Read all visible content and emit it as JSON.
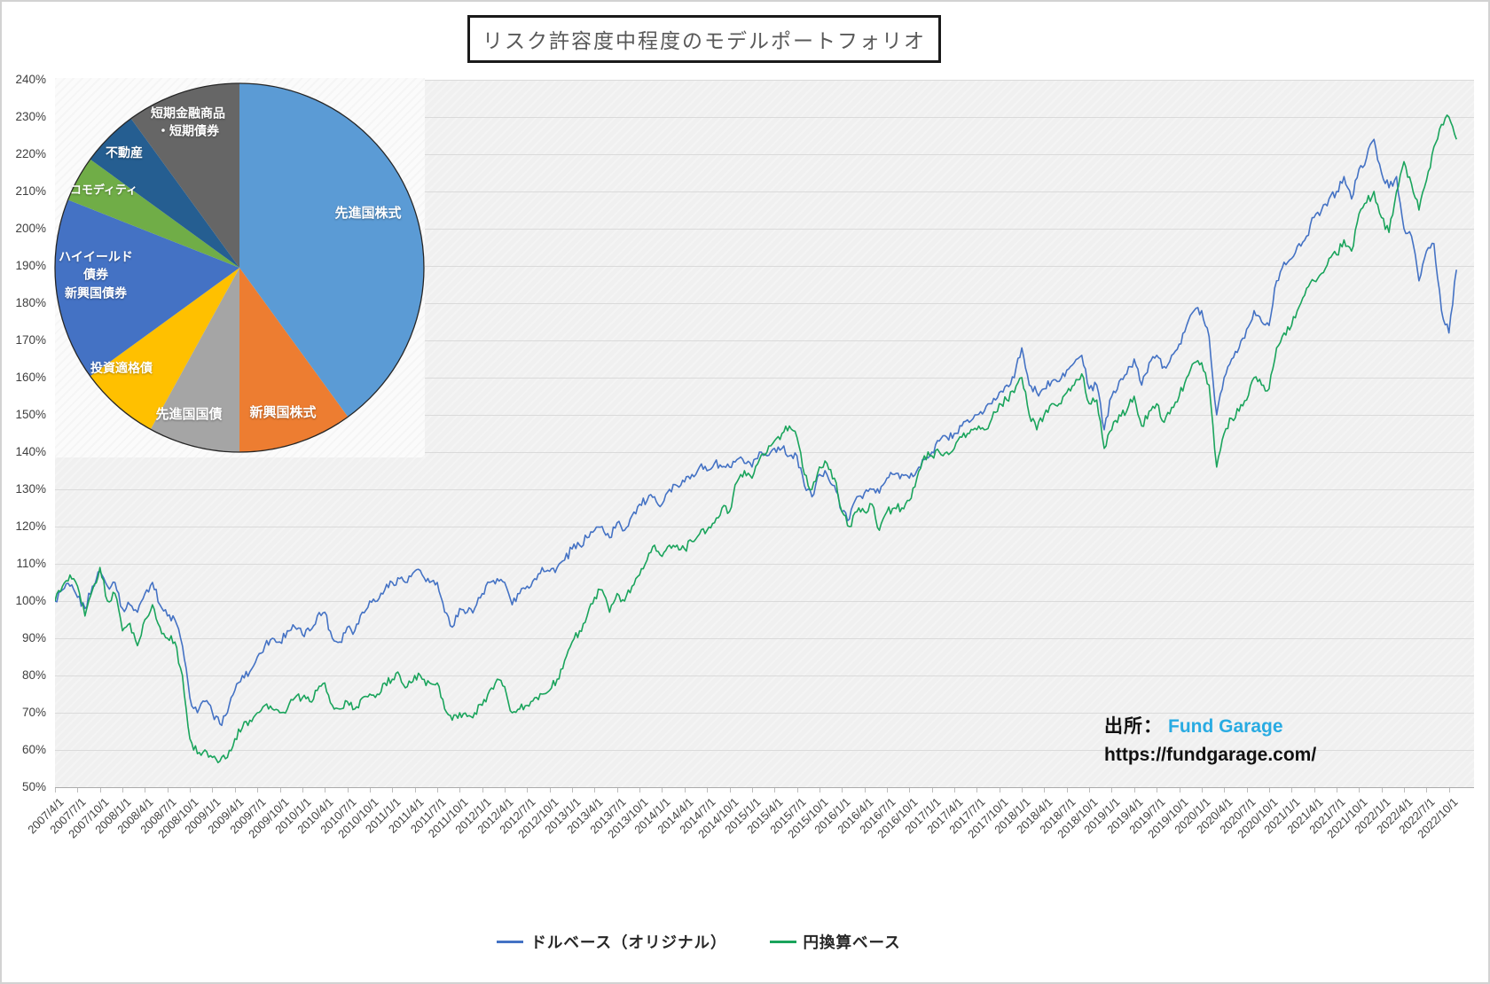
{
  "title": "リスク許容度中程度のモデルポートフォリオ",
  "source": {
    "prefix": "出所：",
    "brand": "Fund Garage",
    "brand_color": "#29ABE2",
    "url": "https://fundgarage.com/"
  },
  "chart_data": [
    {
      "type": "line",
      "title": "リスク許容度中程度のモデルポートフォリオ",
      "xlabel": "",
      "ylabel": "",
      "legend_position": "bottom",
      "grid": "horizontal",
      "plot_background": "#f0f0f0",
      "gridline_color": "#dadada",
      "y_axis": {
        "min": 50,
        "max": 240,
        "step": 10,
        "suffix": "%"
      },
      "x_axis": {
        "start": "2007/4/1",
        "frequency": "monthly",
        "tick_labels": [
          "2007/4/1",
          "2007/7/1",
          "2007/10/1",
          "2008/1/1",
          "2008/4/1",
          "2008/7/1",
          "2008/10/1",
          "2009/1/1",
          "2009/4/1",
          "2009/7/1",
          "2009/10/1",
          "2010/1/1",
          "2010/4/1",
          "2010/7/1",
          "2010/10/1",
          "2011/1/1",
          "2011/4/1",
          "2011/7/1",
          "2011/10/1",
          "2012/1/1",
          "2012/4/1",
          "2012/7/1",
          "2012/10/1",
          "2013/1/1",
          "2013/4/1",
          "2013/7/1",
          "2013/10/1",
          "2014/1/1",
          "2014/4/1",
          "2014/7/1",
          "2014/10/1",
          "2015/1/1",
          "2015/4/1",
          "2015/7/1",
          "2015/10/1",
          "2016/1/1",
          "2016/4/1",
          "2016/7/1",
          "2016/10/1",
          "2017/1/1",
          "2017/4/1",
          "2017/7/1",
          "2017/10/1",
          "2018/1/1",
          "2018/4/1",
          "2018/7/1",
          "2018/10/1",
          "2019/1/1",
          "2019/4/1",
          "2019/7/1",
          "2019/10/1",
          "2020/1/1",
          "2020/4/1",
          "2020/7/1",
          "2020/10/1",
          "2021/1/1",
          "2021/4/1",
          "2021/7/1",
          "2021/10/1",
          "2022/1/1",
          "2022/4/1",
          "2022/7/1",
          "2022/10/1"
        ]
      },
      "series": [
        {
          "name": "ドルベース（オリジナル）",
          "color": "#4472C4",
          "monthly_values": [
            100,
            103,
            104,
            101,
            98,
            104,
            108,
            104,
            105,
            98,
            99,
            97,
            102,
            105,
            99,
            96,
            95,
            88,
            74,
            70,
            73,
            70,
            67,
            70,
            76,
            80,
            81,
            85,
            88,
            90,
            89,
            92,
            93,
            91,
            92,
            96,
            97,
            90,
            89,
            93,
            92,
            97,
            100,
            100,
            103,
            105,
            106,
            105,
            108,
            107,
            105,
            105,
            97,
            93,
            98,
            97,
            98,
            102,
            105,
            106,
            105,
            99,
            102,
            104,
            106,
            109,
            108,
            109,
            111,
            114,
            115,
            117,
            119,
            120,
            117,
            121,
            119,
            123,
            126,
            127,
            128,
            126,
            130,
            131,
            132,
            134,
            136,
            135,
            137,
            136,
            136,
            138,
            137,
            136,
            140,
            139,
            141,
            141,
            139,
            139,
            131,
            128,
            134,
            134,
            131,
            124,
            122,
            128,
            129,
            130,
            129,
            133,
            134,
            134,
            133,
            135,
            138,
            140,
            143,
            144,
            145,
            147,
            148,
            150,
            151,
            153,
            156,
            158,
            160,
            168,
            158,
            156,
            157,
            159,
            159,
            162,
            164,
            166,
            157,
            158,
            146,
            155,
            159,
            161,
            165,
            158,
            164,
            166,
            163,
            166,
            169,
            174,
            178,
            178,
            171,
            150,
            160,
            165,
            168,
            173,
            178,
            175,
            174,
            186,
            191,
            192,
            196,
            198,
            203,
            205,
            208,
            210,
            214,
            208,
            216,
            219,
            224,
            215,
            211,
            214,
            200,
            198,
            186,
            194,
            196,
            178,
            172,
            189
          ]
        },
        {
          "name": "円換算ベース",
          "color": "#1AA45C",
          "monthly_values": [
            100,
            104,
            107,
            104,
            96,
            103,
            109,
            100,
            102,
            92,
            94,
            88,
            95,
            99,
            93,
            90,
            89,
            80,
            63,
            59,
            60,
            58,
            57,
            58,
            63,
            66,
            68,
            70,
            72,
            71,
            70,
            71,
            74,
            74,
            73,
            76,
            78,
            72,
            71,
            73,
            71,
            74,
            75,
            75,
            78,
            79,
            80,
            77,
            80,
            79,
            78,
            78,
            71,
            68,
            70,
            69,
            70,
            72,
            76,
            79,
            77,
            70,
            71,
            72,
            74,
            75,
            76,
            79,
            84,
            89,
            92,
            96,
            101,
            103,
            97,
            102,
            100,
            104,
            107,
            111,
            115,
            112,
            115,
            115,
            114,
            116,
            118,
            119,
            121,
            125,
            124,
            132,
            135,
            133,
            138,
            140,
            143,
            145,
            147,
            144,
            134,
            130,
            136,
            137,
            133,
            124,
            120,
            124,
            124,
            126,
            119,
            124,
            125,
            125,
            127,
            133,
            139,
            139,
            140,
            140,
            141,
            144,
            145,
            146,
            146,
            149,
            153,
            154,
            156,
            160,
            150,
            146,
            150,
            153,
            153,
            156,
            158,
            161,
            153,
            154,
            141,
            146,
            150,
            151,
            155,
            147,
            151,
            153,
            148,
            152,
            155,
            160,
            164,
            164,
            158,
            136,
            145,
            149,
            151,
            154,
            160,
            158,
            157,
            168,
            172,
            174,
            179,
            184,
            186,
            188,
            192,
            193,
            197,
            194,
            204,
            207,
            210,
            203,
            199,
            210,
            218,
            212,
            205,
            213,
            222,
            228,
            230,
            224
          ]
        }
      ]
    },
    {
      "type": "pie",
      "start_angle_deg": 0,
      "direction": "clockwise",
      "slices": [
        {
          "label": "先進国株式",
          "value": 40,
          "color": "#5B9BD5",
          "label_lines": [
            "先進国株式"
          ]
        },
        {
          "label": "新興国株式",
          "value": 10,
          "color": "#ED7D31",
          "label_lines": [
            "新興国株式"
          ]
        },
        {
          "label": "先進国国債",
          "value": 8,
          "color": "#A5A5A5",
          "label_lines": [
            "先進国国債"
          ]
        },
        {
          "label": "投資適格債",
          "value": 7,
          "color": "#FFC000",
          "label_lines": [
            "投資適格債"
          ]
        },
        {
          "label": "ハイイールド債券・新興国債券",
          "value": 16,
          "color": "#4472C4",
          "label_lines": [
            "ハイイールド",
            "債券",
            "新興国債券"
          ]
        },
        {
          "label": "コモディティ",
          "value": 4,
          "color": "#70AD47",
          "label_lines": [
            "コモディティ"
          ]
        },
        {
          "label": "不動産",
          "value": 5,
          "color": "#255E91",
          "label_lines": [
            "不動産"
          ]
        },
        {
          "label": "短期金融商品・短期債券",
          "value": 10,
          "color": "#666666",
          "label_lines": [
            "短期金融商品",
            "・短期債券"
          ]
        }
      ]
    }
  ]
}
